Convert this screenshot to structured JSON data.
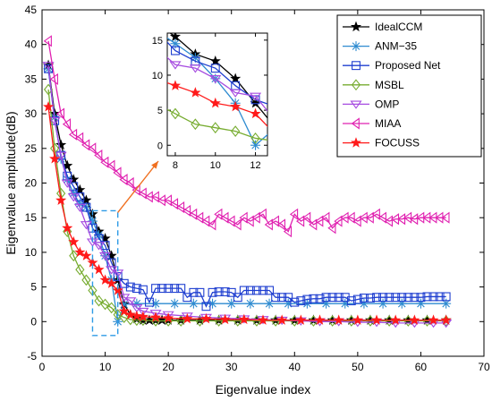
{
  "chart_data": {
    "type": "line",
    "title": "",
    "xlabel": "Eigenvalue index",
    "ylabel": "Eigenvalue amplitude(dB)",
    "xlim": [
      0,
      70
    ],
    "ylim": [
      -5,
      45
    ],
    "xticks": [
      0,
      10,
      20,
      30,
      40,
      50,
      60,
      70
    ],
    "yticks": [
      -5,
      0,
      5,
      10,
      15,
      20,
      25,
      30,
      35,
      40,
      45
    ],
    "grid": false,
    "legend_position": "top-right",
    "series": [
      {
        "name": "IdealCCM",
        "color": "#000000",
        "marker": "star",
        "x": [
          1,
          2,
          3,
          4,
          5,
          6,
          7,
          8,
          9,
          10,
          11,
          12,
          13,
          14,
          15,
          16,
          17,
          18,
          19,
          20,
          22,
          25,
          28,
          31,
          34,
          37,
          40,
          43,
          46,
          49,
          52,
          55,
          58,
          61,
          64
        ],
        "y": [
          37,
          30,
          25.5,
          22.5,
          20.5,
          19,
          17.5,
          15.5,
          13,
          12,
          9.5,
          6,
          2.5,
          1,
          0.4,
          0.2,
          0.2,
          0.2,
          0.2,
          0.2,
          0.2,
          0.2,
          0.2,
          0.2,
          0.2,
          0.2,
          0.2,
          0.2,
          0.2,
          0.2,
          0.2,
          0.2,
          0.2,
          0.2,
          0.2
        ]
      },
      {
        "name": "ANM−35",
        "color": "#2E8BD0",
        "marker": "asterisk",
        "x": [
          1,
          2,
          3,
          4,
          5,
          6,
          7,
          8,
          9,
          10,
          11,
          12,
          13,
          15,
          18,
          21,
          24,
          27,
          30,
          33,
          36,
          39,
          42,
          45,
          48,
          51,
          54,
          57,
          60,
          64
        ],
        "y": [
          36.5,
          29.5,
          23.5,
          20.5,
          18.5,
          17,
          16.5,
          14.5,
          12.5,
          9.5,
          6,
          0,
          2.5,
          2.6,
          2.6,
          2.6,
          2.6,
          2.6,
          2.6,
          2.6,
          2.6,
          2.6,
          2.6,
          2.6,
          2.6,
          2.6,
          2.6,
          2.6,
          2.6,
          2.6
        ]
      },
      {
        "name": "Proposed Net",
        "color": "#1F3FD0",
        "marker": "square",
        "x": [
          1,
          2,
          3,
          4,
          5,
          6,
          7,
          8,
          9,
          10,
          11,
          12,
          13,
          14,
          15,
          16,
          17,
          18,
          19,
          20,
          21,
          22,
          23,
          24,
          25,
          26,
          27,
          28,
          29,
          30,
          31,
          32,
          33,
          34,
          35,
          36,
          37,
          38,
          39,
          40,
          41,
          42,
          43,
          44,
          45,
          46,
          47,
          48,
          49,
          50,
          51,
          52,
          53,
          54,
          55,
          56,
          57,
          58,
          59,
          60,
          61,
          62,
          63,
          64
        ],
        "y": [
          36.5,
          29,
          24,
          21,
          19.5,
          18,
          16.5,
          13.5,
          12,
          11,
          8.5,
          6.5,
          5.5,
          5,
          4.8,
          4.6,
          2.8,
          4.8,
          4.8,
          4.8,
          4.8,
          4.8,
          3.5,
          4.2,
          4.2,
          2.2,
          4.2,
          4.3,
          4.3,
          4.2,
          3.5,
          4.5,
          4.5,
          4.5,
          4.5,
          4.5,
          3.5,
          3.5,
          3.5,
          2.8,
          3,
          3.2,
          3.3,
          3.3,
          3.5,
          3.5,
          3.5,
          3.5,
          3,
          3.2,
          3.4,
          3.4,
          3.5,
          3.5,
          3.5,
          3.5,
          3.5,
          3.5,
          3.5,
          3.5,
          3.6,
          3.6,
          3.6,
          3.6
        ]
      },
      {
        "name": "MSBL",
        "color": "#77AC30",
        "marker": "diamond",
        "x": [
          1,
          2,
          3,
          4,
          5,
          6,
          7,
          8,
          9,
          10,
          11,
          12,
          13,
          14,
          15,
          16,
          18,
          20,
          22,
          25,
          28,
          31,
          34,
          37,
          40,
          43,
          46,
          49,
          52,
          55,
          58,
          61,
          64
        ],
        "y": [
          33.5,
          25,
          18.5,
          13,
          9.5,
          7.5,
          6,
          4.5,
          3,
          2.5,
          2,
          1,
          0.6,
          0.3,
          0.2,
          0.2,
          0.1,
          0.1,
          0.1,
          0.1,
          0.1,
          0.1,
          0.1,
          0.1,
          0.1,
          0.1,
          0.1,
          0.1,
          0.1,
          0.1,
          0.1,
          0.1,
          0.1
        ]
      },
      {
        "name": "OMP",
        "color": "#A64BE0",
        "marker": "triangle-down",
        "x": [
          1,
          2,
          3,
          4,
          5,
          6,
          7,
          8,
          9,
          10,
          11,
          12,
          13,
          14,
          15,
          16,
          18,
          20,
          23,
          26,
          29,
          32,
          35,
          38,
          41,
          44,
          47,
          50,
          53,
          56,
          59,
          62,
          64
        ],
        "y": [
          37,
          29,
          24,
          20,
          18,
          16.5,
          14,
          11.5,
          11,
          9.5,
          7.5,
          7,
          3.5,
          3,
          2,
          1.5,
          1.2,
          1,
          0.8,
          0.6,
          0.5,
          0.4,
          0.3,
          0.2,
          0.1,
          0,
          0,
          -0.1,
          -0.1,
          -0.2,
          -0.2,
          -0.2,
          -0.2
        ]
      },
      {
        "name": "MIAA",
        "color": "#E020B0",
        "marker": "triangle-left",
        "x": [
          1,
          2,
          3,
          4,
          5,
          6,
          7,
          8,
          9,
          10,
          11,
          12,
          13,
          14,
          15,
          16,
          17,
          18,
          19,
          20,
          21,
          22,
          23,
          24,
          25,
          26,
          27,
          28,
          29,
          30,
          31,
          32,
          33,
          34,
          35,
          36,
          37,
          38,
          39,
          40,
          41,
          42,
          43,
          44,
          45,
          46,
          47,
          48,
          49,
          50,
          51,
          52,
          53,
          54,
          55,
          56,
          57,
          58,
          59,
          60,
          61,
          62,
          63,
          64
        ],
        "y": [
          40.5,
          35,
          30,
          28.5,
          27,
          26.5,
          25.5,
          25,
          24,
          23,
          22.5,
          21.5,
          20.5,
          20,
          19,
          18.5,
          18,
          18,
          17.5,
          17.5,
          17,
          16.5,
          16,
          15.5,
          15,
          14.5,
          14,
          15.5,
          15,
          14.5,
          14,
          15,
          14.5,
          15,
          15.5,
          14,
          14.5,
          14,
          13,
          15.5,
          14.5,
          15,
          14,
          14.5,
          15,
          13.5,
          14.5,
          15,
          15,
          14.5,
          15,
          15,
          15.5,
          15,
          14.5,
          14.8,
          14.8,
          15,
          14.8,
          15,
          15,
          15,
          15,
          15
        ]
      },
      {
        "name": "FOCUSS",
        "color": "#FF1A1A",
        "marker": "star",
        "x": [
          1,
          2,
          3,
          4,
          5,
          6,
          7,
          8,
          9,
          10,
          11,
          12,
          13,
          14,
          15,
          16,
          18,
          20,
          23,
          26,
          29,
          32,
          35,
          38,
          41,
          44,
          47,
          50,
          53,
          56,
          59,
          62,
          64
        ],
        "y": [
          31,
          23.5,
          17.5,
          13.5,
          11.5,
          10,
          9.5,
          8.5,
          7.5,
          6,
          5.5,
          4.5,
          1.5,
          1,
          0.8,
          0.7,
          0.6,
          0.5,
          0.4,
          0.4,
          0.3,
          0.3,
          0.2,
          0.2,
          0.2,
          0.2,
          0.2,
          0.2,
          0.2,
          0.2,
          0.2,
          0.2,
          0.2
        ]
      }
    ],
    "inset": {
      "xlim": [
        7.6,
        12.6
      ],
      "ylim": [
        -1.5,
        16
      ],
      "xticks": [
        8,
        10,
        12
      ],
      "yticks": [
        0,
        5,
        10,
        15
      ],
      "highlight_region": {
        "x": [
          8,
          12
        ],
        "y": [
          -2,
          16
        ]
      }
    }
  }
}
